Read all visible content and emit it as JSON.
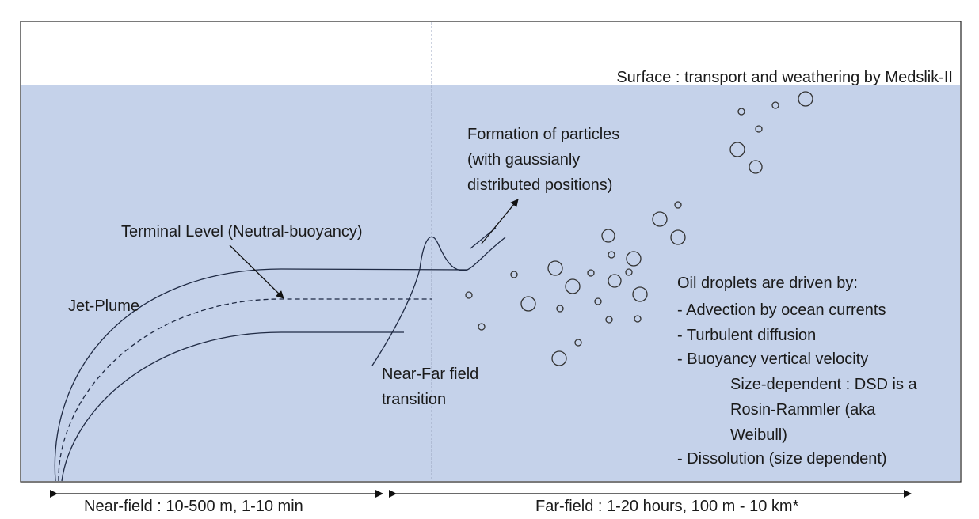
{
  "surface_label": "Surface : transport and weathering by Medslik-II",
  "particles_label": [
    "Formation of particles",
    "(with gaussianly",
    "distributed positions)"
  ],
  "terminal_level_label": "Terminal Level (Neutral-buoyancy)",
  "jet_plume_label": "Jet-Plume",
  "transition_label": [
    "Near-Far field",
    "transition"
  ],
  "droplets_panel": {
    "heading": "Oil droplets are driven by:",
    "items": [
      "-   Advection by ocean currents",
      "-   Turbulent diffusion",
      "-   Buoyancy vertical velocity",
      "Size-dependent : DSD is a",
      "Rosin-Rammler (aka",
      "Weibull)",
      "- Dissolution (size dependent)"
    ]
  },
  "near_field_label": "Near-field :  10-500 m, 1-10 min",
  "far_field_label": "Far-field : 1-20 hours, 100 m - 10 km*",
  "colors": {
    "water": "#c5d2ea",
    "line": "#1f2a44",
    "divider": "#9aa6c0"
  }
}
